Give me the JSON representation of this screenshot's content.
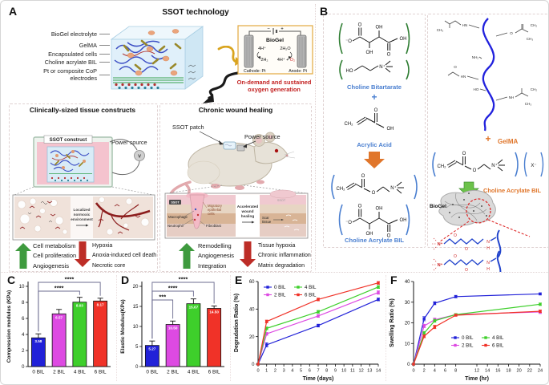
{
  "panelA": {
    "label": "A",
    "title": "SSOT technology",
    "layers": [
      "BioGel electrolyte",
      "GelMA",
      "Encapsulated cells",
      "Choline acrylate BIL",
      "Pt or composite CoP electrodes"
    ],
    "electrolysis": {
      "minus": "−",
      "plus": "+",
      "biogel": "BioGel",
      "cathode_top": "4H⁺",
      "cathode_bottom": "2H₂",
      "anode_top": "2H₂O",
      "anode_prefix": "4H⁺ + ",
      "anode_o2": "O₂",
      "cathode": "Cathode: Pt",
      "anode": "Anode: Pt",
      "caption1": "On-demand and sustained",
      "caption2": "oxygen generation"
    },
    "tissue": {
      "title": "Clinically-sized tissue constructs",
      "construct": "SSOT construct",
      "power": "Power source",
      "voltmeter": "V",
      "inset": {
        "line1": "Localized",
        "line2": "normoxic",
        "line3": "environment"
      },
      "up": [
        "Cell metabolism",
        "Cell proliferation",
        "Angiogenesis"
      ],
      "down": [
        "Hypoxia",
        "Anoxia-induced cell death",
        "Necrotic core"
      ]
    },
    "wound": {
      "title": "Chronic wound healing",
      "patch": "SSOT patch",
      "power": "Power source",
      "inset": {
        "ssot": "SSOT",
        "macrophage": "Macrophage",
        "neutrophil": "Neutrophil",
        "mig1": "Migratory",
        "mig2": "epithelial",
        "mig3": "cells",
        "fibroblast": "Fibroblast",
        "acc1": "Accelerated",
        "acc2": "wound",
        "acc3": "healing",
        "scar1": "Scar",
        "scar2": "tissue"
      },
      "up": [
        "Remodelling",
        "Angiogenesis",
        "Integration"
      ],
      "down": [
        "Tissue hypoxia",
        "Chronic inflammation",
        "Matrix degradation"
      ]
    }
  },
  "panelB": {
    "label": "B",
    "labels": {
      "choline_bitartarate": "Choline Bitartarate",
      "plus": "+",
      "acrylic_acid": "Acrylic Acid",
      "choline_acrylate_bil": "Choline Acrylate BIL",
      "gelma": "GelMA",
      "biogel": "BioGel"
    },
    "atoms": {
      "o": "O",
      "oh": "OH",
      "ho": "HO",
      "o_minus": "⁻O",
      "n_plus": "N⁺",
      "ch2": "CH₂",
      "ch3": "CH₃",
      "nh2": "NH₂",
      "hn": "HN",
      "nh": "NH",
      "n": "N",
      "h": "H",
      "x_minus": "X⁻"
    }
  },
  "chart_data": [
    {
      "id": "C",
      "panel_label": "C",
      "type": "bar",
      "categories": [
        "0 BIL",
        "2 BIL",
        "4 BIL",
        "6 BIL"
      ],
      "values": [
        3.58,
        6.57,
        8.03,
        8.17
      ],
      "errors": [
        0.5,
        0.55,
        0.6,
        0.35
      ],
      "bar_labels": [
        "3.58",
        "6.57",
        "8.03",
        "8.17"
      ],
      "bar_colors": [
        "#2121d8",
        "#dd4ae2",
        "#3ecf2b",
        "#f03228"
      ],
      "ylabel": "Compression modulus (KPa)",
      "ylim": [
        0,
        10
      ],
      "yticks": [
        0,
        2,
        4,
        6,
        8,
        10
      ],
      "significance": [
        {
          "from": 0,
          "to": 3,
          "label": "****"
        },
        {
          "from": 0,
          "to": 2,
          "label": "****"
        }
      ]
    },
    {
      "id": "D",
      "panel_label": "D",
      "type": "bar",
      "categories": [
        "0 BIL",
        "2 BIL",
        "4 BIL",
        "6 BIL"
      ],
      "values": [
        5.27,
        10.5,
        15.67,
        14.5
      ],
      "errors": [
        1.1,
        0.85,
        1.2,
        0.6
      ],
      "bar_labels": [
        "5.27",
        "10.50",
        "15.67",
        "14.50"
      ],
      "bar_colors": [
        "#2121d8",
        "#dd4ae2",
        "#3ecf2b",
        "#f03228"
      ],
      "ylabel": "Elastic Modulus(KPa)",
      "ylim": [
        0,
        20
      ],
      "yticks": [
        0,
        5,
        10,
        15,
        20
      ],
      "significance": [
        {
          "from": 0,
          "to": 3,
          "label": "****"
        },
        {
          "from": 0,
          "to": 2,
          "label": "****"
        },
        {
          "from": 0,
          "to": 1,
          "label": "***"
        }
      ]
    },
    {
      "id": "E",
      "panel_label": "E",
      "type": "line",
      "x": [
        0,
        1,
        7,
        14
      ],
      "series": [
        {
          "name": "0 BIL",
          "color": "#2121d8",
          "values": [
            0,
            14,
            28,
            47
          ],
          "errors": [
            0,
            1.5,
            1,
            1
          ]
        },
        {
          "name": "2 BIL",
          "color": "#dd4ae2",
          "values": [
            0,
            22,
            35,
            52
          ],
          "errors": [
            0,
            1,
            1,
            1.2
          ]
        },
        {
          "name": "4 BIL",
          "color": "#3ecf2b",
          "values": [
            0,
            26,
            38,
            56
          ],
          "errors": [
            0,
            1,
            1,
            1
          ]
        },
        {
          "name": "6 BIL",
          "color": "#f03228",
          "values": [
            0,
            31,
            47,
            59
          ],
          "errors": [
            0,
            1,
            1,
            1
          ]
        }
      ],
      "xlabel": "Time (days)",
      "ylabel": "Degradation Ratio (%)",
      "xlim": [
        0,
        14
      ],
      "xticks": [
        0,
        1,
        2,
        3,
        4,
        5,
        6,
        7,
        8,
        9,
        10,
        11,
        12,
        13,
        14
      ],
      "ylim": [
        0,
        60
      ],
      "yticks": [
        0,
        20,
        40,
        60
      ],
      "legend_position": "top-left"
    },
    {
      "id": "F",
      "panel_label": "F",
      "type": "line",
      "x": [
        0,
        2,
        4,
        8,
        24
      ],
      "series": [
        {
          "name": "0 BIL",
          "color": "#2121d8",
          "values": [
            0,
            22,
            29.5,
            32.7,
            34
          ],
          "errors": [
            0,
            1,
            0.7,
            0.6,
            0.5
          ]
        },
        {
          "name": "2 BIL",
          "color": "#dd4ae2",
          "values": [
            0,
            18.5,
            21.5,
            24,
            25.3
          ],
          "errors": [
            0,
            0.8,
            0.8,
            0.5,
            0.8
          ]
        },
        {
          "name": "4 BIL",
          "color": "#3ecf2b",
          "values": [
            0,
            15,
            21,
            24,
            29
          ],
          "errors": [
            0,
            0.8,
            0.7,
            0.5,
            0.6
          ]
        },
        {
          "name": "6 BIL",
          "color": "#f03228",
          "values": [
            0,
            13.5,
            18,
            23.7,
            25.6
          ],
          "errors": [
            0,
            0.7,
            0.8,
            0.5,
            0.6
          ]
        }
      ],
      "xlabel": "Time (hr)",
      "ylabel": "Swelling Ratio (%)",
      "xlim": [
        0,
        24
      ],
      "xticks": [
        0,
        2,
        4,
        6,
        8,
        12,
        14,
        16,
        18,
        20,
        22,
        24
      ],
      "ylim": [
        0,
        40
      ],
      "yticks": [
        0,
        10,
        20,
        30,
        40
      ],
      "legend_position": "bottom-center"
    }
  ]
}
